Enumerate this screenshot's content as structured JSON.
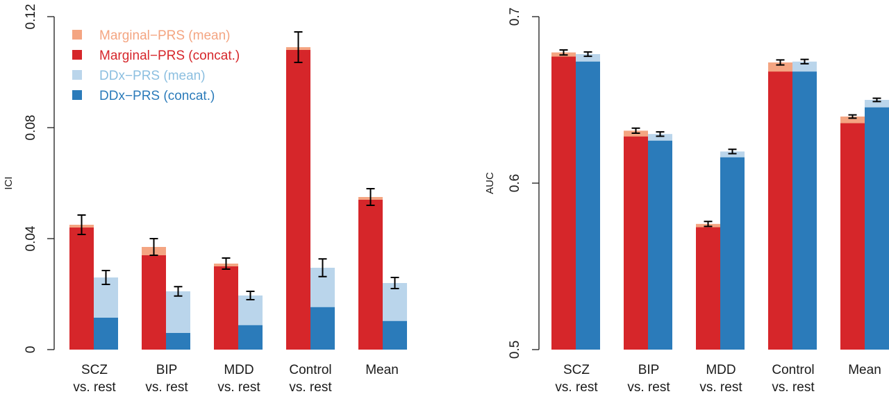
{
  "colors": {
    "marginal_mean": "#F4A582",
    "marginal_concat": "#D6262A",
    "ddx_mean": "#BAD5EB",
    "ddx_concat": "#2B7BBA"
  },
  "chart_data": [
    {
      "type": "bar",
      "ylabel": "ICI",
      "ylim": [
        0,
        0.12
      ],
      "yticks": [
        "0",
        "0.04",
        "0.08",
        "0.12"
      ],
      "ytick_values": [
        0,
        0.04,
        0.08,
        0.12
      ],
      "categories": [
        [
          "SCZ",
          "vs. rest"
        ],
        [
          "BIP",
          "vs. rest"
        ],
        [
          "MDD",
          "vs. rest"
        ],
        [
          "Control",
          "vs. rest"
        ],
        [
          "Mean"
        ]
      ],
      "legend": {
        "position": "top-left",
        "entries": [
          "Marginal−PRS (mean)",
          "Marginal−PRS (concat.)",
          "DDx−PRS (mean)",
          "DDx−PRS (concat.)"
        ]
      },
      "series": [
        {
          "name": "Marginal−PRS (mean)",
          "values": [
            0.045,
            0.037,
            0.031,
            0.109,
            0.055
          ],
          "err": [
            0.0035,
            0.003,
            0.002,
            0.0055,
            0.003
          ]
        },
        {
          "name": "Marginal−PRS (concat.)",
          "values": [
            0.044,
            0.034,
            0.03,
            0.108,
            0.054
          ]
        },
        {
          "name": "DDx−PRS (mean)",
          "values": [
            0.026,
            0.021,
            0.0195,
            0.0295,
            0.024
          ],
          "err": [
            0.0025,
            0.0017,
            0.0015,
            0.0032,
            0.002
          ]
        },
        {
          "name": "DDx−PRS (concat.)",
          "values": [
            0.0115,
            0.006,
            0.0088,
            0.0153,
            0.0103
          ]
        }
      ]
    },
    {
      "type": "bar",
      "ylabel": "AUC",
      "ylim": [
        0.5,
        0.7
      ],
      "yticks": [
        "0.5",
        "0.6",
        "0.7"
      ],
      "ytick_values": [
        0.5,
        0.6,
        0.7
      ],
      "categories": [
        [
          "SCZ",
          "vs. rest"
        ],
        [
          "BIP",
          "vs. rest"
        ],
        [
          "MDD",
          "vs. rest"
        ],
        [
          "Control",
          "vs. rest"
        ],
        [
          "Mean"
        ]
      ],
      "series": [
        {
          "name": "Marginal−PRS (mean)",
          "values": [
            0.6785,
            0.6315,
            0.5755,
            0.6725,
            0.64
          ],
          "err": [
            0.0015,
            0.0015,
            0.0015,
            0.0015,
            0.001
          ]
        },
        {
          "name": "Marginal−PRS (concat.)",
          "values": [
            0.676,
            0.628,
            0.5735,
            0.667,
            0.636
          ]
        },
        {
          "name": "DDx−PRS (mean)",
          "values": [
            0.6775,
            0.6295,
            0.619,
            0.673,
            0.65
          ],
          "err": [
            0.0013,
            0.0013,
            0.0013,
            0.0013,
            0.001
          ]
        },
        {
          "name": "DDx−PRS (concat.)",
          "values": [
            0.673,
            0.6255,
            0.6155,
            0.667,
            0.6455
          ]
        }
      ]
    }
  ]
}
